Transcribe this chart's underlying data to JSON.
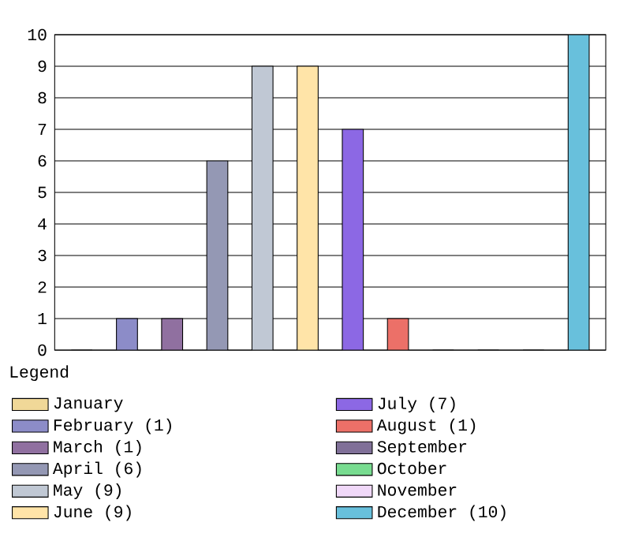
{
  "chart_data": {
    "type": "bar",
    "legend_title": "Legend",
    "categories": [
      null,
      null,
      null,
      null,
      null,
      null,
      null,
      null,
      null,
      null,
      null,
      null
    ],
    "series": [
      {
        "name": "January",
        "color": "#f0d898",
        "values": [
          0,
          null,
          null,
          null,
          null,
          null,
          null,
          null,
          null,
          null,
          null,
          null
        ]
      },
      {
        "name": "February (1)",
        "color": "#8c8cc8",
        "values": [
          null,
          1,
          null,
          null,
          null,
          null,
          null,
          null,
          null,
          null,
          null,
          null
        ]
      },
      {
        "name": "March (1)",
        "color": "#9070a0",
        "values": [
          null,
          null,
          1,
          null,
          null,
          null,
          null,
          null,
          null,
          null,
          null,
          null
        ]
      },
      {
        "name": "April (6)",
        "color": "#9498b4",
        "values": [
          null,
          null,
          null,
          6,
          null,
          null,
          null,
          null,
          null,
          null,
          null,
          null
        ]
      },
      {
        "name": "May (9)",
        "color": "#c0c8d4",
        "values": [
          null,
          null,
          null,
          null,
          9,
          null,
          null,
          null,
          null,
          null,
          null,
          null
        ]
      },
      {
        "name": "June (9)",
        "color": "#ffe4a8",
        "values": [
          null,
          null,
          null,
          null,
          null,
          9,
          null,
          null,
          null,
          null,
          null,
          null
        ]
      },
      {
        "name": "July (7)",
        "color": "#8c68e4",
        "values": [
          null,
          null,
          null,
          null,
          null,
          null,
          7,
          null,
          null,
          null,
          null,
          null
        ]
      },
      {
        "name": "August (1)",
        "color": "#ec7068",
        "values": [
          null,
          null,
          null,
          null,
          null,
          null,
          null,
          1,
          null,
          null,
          null,
          null
        ]
      },
      {
        "name": "September",
        "color": "#807098",
        "values": [
          null,
          null,
          null,
          null,
          null,
          null,
          null,
          null,
          0,
          null,
          null,
          null
        ]
      },
      {
        "name": "October",
        "color": "#78dc90",
        "values": [
          null,
          null,
          null,
          null,
          null,
          null,
          null,
          null,
          null,
          0,
          null,
          null
        ]
      },
      {
        "name": "November",
        "color": "#f0d8f8",
        "values": [
          null,
          null,
          null,
          null,
          null,
          null,
          null,
          null,
          null,
          null,
          0,
          null
        ]
      },
      {
        "name": "December (10)",
        "color": "#68c0dc",
        "values": [
          null,
          null,
          null,
          null,
          null,
          null,
          null,
          null,
          null,
          null,
          null,
          10
        ]
      }
    ],
    "ylim": [
      0,
      10
    ],
    "yticks": [
      0,
      1,
      2,
      3,
      4,
      5,
      6,
      7,
      8,
      9,
      10
    ],
    "grid": "y",
    "legend": "bottom",
    "tick_labels": "y"
  }
}
